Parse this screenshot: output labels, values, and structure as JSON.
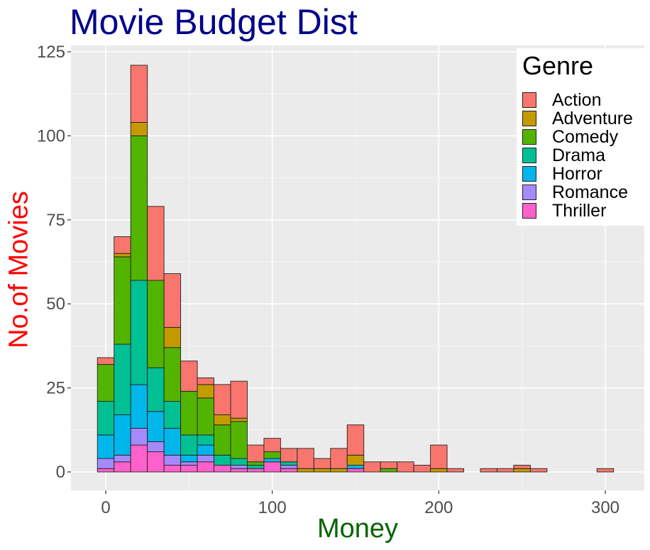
{
  "chart_data": {
    "type": "bar",
    "stacked": true,
    "title": "Movie Budget Dist",
    "xlabel": "Money",
    "ylabel": "No.of Movies",
    "legend_title": "Genre",
    "legend_position": "top-right",
    "xlim": [
      -5,
      305
    ],
    "ylim": [
      0,
      125
    ],
    "x_ticks": [
      0,
      100,
      200,
      300
    ],
    "y_ticks": [
      0,
      25,
      50,
      75,
      100,
      125
    ],
    "grid": true,
    "bin_width": 10,
    "bins": [
      0,
      10,
      20,
      30,
      40,
      50,
      60,
      70,
      80,
      90,
      100,
      110,
      120,
      130,
      140,
      150,
      160,
      170,
      180,
      190,
      200,
      210,
      220,
      230,
      240,
      250,
      260,
      270,
      280,
      290,
      300
    ],
    "series": [
      {
        "name": "Thriller",
        "color": "#FF61CC",
        "values": [
          1,
          3,
          8,
          6,
          2,
          2,
          3,
          2,
          1,
          1,
          3,
          1,
          0,
          0,
          0,
          1,
          0,
          0,
          0,
          0,
          0,
          0,
          0,
          0,
          0,
          0,
          0,
          0,
          0,
          0,
          0
        ]
      },
      {
        "name": "Romance",
        "color": "#A58AFF",
        "values": [
          3,
          2,
          5,
          3,
          3,
          1,
          2,
          0,
          1,
          0,
          0,
          1,
          0,
          0,
          0,
          0,
          0,
          0,
          0,
          0,
          0,
          0,
          0,
          0,
          0,
          0,
          0,
          0,
          0,
          0,
          0
        ]
      },
      {
        "name": "Horror",
        "color": "#00B6EB",
        "values": [
          7,
          12,
          13,
          9,
          8,
          2,
          3,
          0,
          0,
          0,
          1,
          0,
          0,
          0,
          0,
          1,
          0,
          0,
          0,
          0,
          0,
          0,
          0,
          0,
          0,
          0,
          0,
          0,
          0,
          0,
          0
        ]
      },
      {
        "name": "Drama",
        "color": "#00C094",
        "values": [
          10,
          21,
          31,
          13,
          8,
          6,
          3,
          3,
          2,
          1,
          0,
          1,
          0,
          0,
          0,
          0,
          0,
          0,
          0,
          0,
          0,
          0,
          0,
          0,
          0,
          0,
          0,
          0,
          0,
          0,
          0
        ]
      },
      {
        "name": "Comedy",
        "color": "#53B400",
        "values": [
          11,
          26,
          43,
          26,
          16,
          13,
          11,
          9,
          11,
          1,
          2,
          0,
          0,
          0,
          0,
          0,
          0,
          1,
          0,
          0,
          0,
          0,
          0,
          0,
          0,
          0,
          0,
          0,
          0,
          0,
          0
        ]
      },
      {
        "name": "Adventure",
        "color": "#C49A00",
        "values": [
          0,
          1,
          4,
          0,
          6,
          0,
          4,
          3,
          1,
          0,
          0,
          0,
          1,
          1,
          1,
          3,
          0,
          0,
          0,
          0,
          1,
          0,
          0,
          0,
          0,
          1,
          0,
          0,
          0,
          0,
          0
        ]
      },
      {
        "name": "Action",
        "color": "#F8766D",
        "values": [
          2,
          5,
          17,
          22,
          16,
          9,
          2,
          9,
          11,
          5,
          4,
          4,
          6,
          3,
          6,
          9,
          3,
          2,
          3,
          2,
          7,
          1,
          0,
          1,
          1,
          1,
          1,
          0,
          0,
          0,
          1
        ]
      }
    ],
    "legend_order": [
      "Action",
      "Adventure",
      "Comedy",
      "Drama",
      "Horror",
      "Romance",
      "Thriller"
    ]
  }
}
